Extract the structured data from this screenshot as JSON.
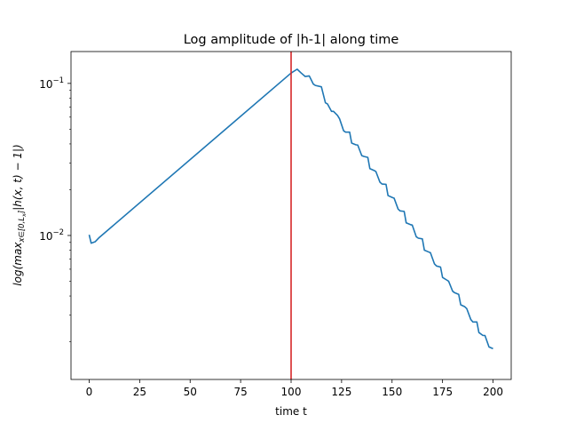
{
  "chart_data": {
    "type": "line",
    "title": "Log amplitude of |h-1| along time",
    "xlabel": "time t",
    "ylabel": "log(max_{x∈[0,L_x]}|h(x,t) − 1|)",
    "ylabel_parts": {
      "prefix": "log(max",
      "subscript": "x∈[0,L",
      "subsubscript": "x",
      "subscript_close": "]",
      "suffix": "|h(x, t) − 1|)"
    },
    "xlim": [
      -9,
      209
    ],
    "ylim": [
      0.00113,
      0.162
    ],
    "yscale": "log",
    "grid": false,
    "xticks": [
      0,
      25,
      50,
      75,
      100,
      125,
      150,
      175,
      200
    ],
    "xtick_labels": [
      "0",
      "25",
      "50",
      "75",
      "100",
      "125",
      "150",
      "175",
      "200"
    ],
    "yticks": [
      0.01,
      0.1
    ],
    "ytick_labels": [
      {
        "base": "10",
        "exp": "−2"
      },
      {
        "base": "10",
        "exp": "−1"
      }
    ],
    "vline": {
      "x": 100,
      "color": "#d62728"
    },
    "series": [
      {
        "color": "#1f77b4",
        "x": [
          0,
          1,
          3,
          5,
          100,
          103,
          105,
          107,
          109,
          111,
          112,
          115,
          117,
          118,
          120,
          121,
          123,
          124,
          126,
          127,
          129,
          130,
          132,
          133,
          135,
          136,
          138,
          139,
          141,
          142,
          144,
          145,
          147,
          148,
          150,
          151,
          153,
          154,
          156,
          157,
          159,
          160,
          162,
          163,
          165,
          166,
          168,
          169,
          171,
          172,
          174,
          175,
          177,
          178,
          180,
          181,
          183,
          184,
          186,
          187,
          189,
          190,
          192,
          193,
          195,
          196,
          198,
          200
        ],
        "y": [
          0.0101,
          0.0089,
          0.0091,
          0.0097,
          0.117,
          0.124,
          0.117,
          0.111,
          0.112,
          0.099,
          0.097,
          0.095,
          0.0745,
          0.0733,
          0.0655,
          0.0655,
          0.0615,
          0.0585,
          0.0488,
          0.0478,
          0.0478,
          0.0405,
          0.0395,
          0.0393,
          0.0335,
          0.0331,
          0.0326,
          0.0275,
          0.0268,
          0.0263,
          0.0224,
          0.0218,
          0.0217,
          0.0183,
          0.0178,
          0.0176,
          0.0149,
          0.0145,
          0.0144,
          0.0121,
          0.0118,
          0.0117,
          0.0098,
          0.0096,
          0.0095,
          0.008,
          0.0078,
          0.0077,
          0.0065,
          0.0063,
          0.0062,
          0.0053,
          0.0051,
          0.005,
          0.0043,
          0.0042,
          0.0041,
          0.0035,
          0.0034,
          0.0033,
          0.0028,
          0.0027,
          0.0027,
          0.0023,
          0.0022,
          0.0022,
          0.00185,
          0.0018
        ]
      }
    ]
  }
}
